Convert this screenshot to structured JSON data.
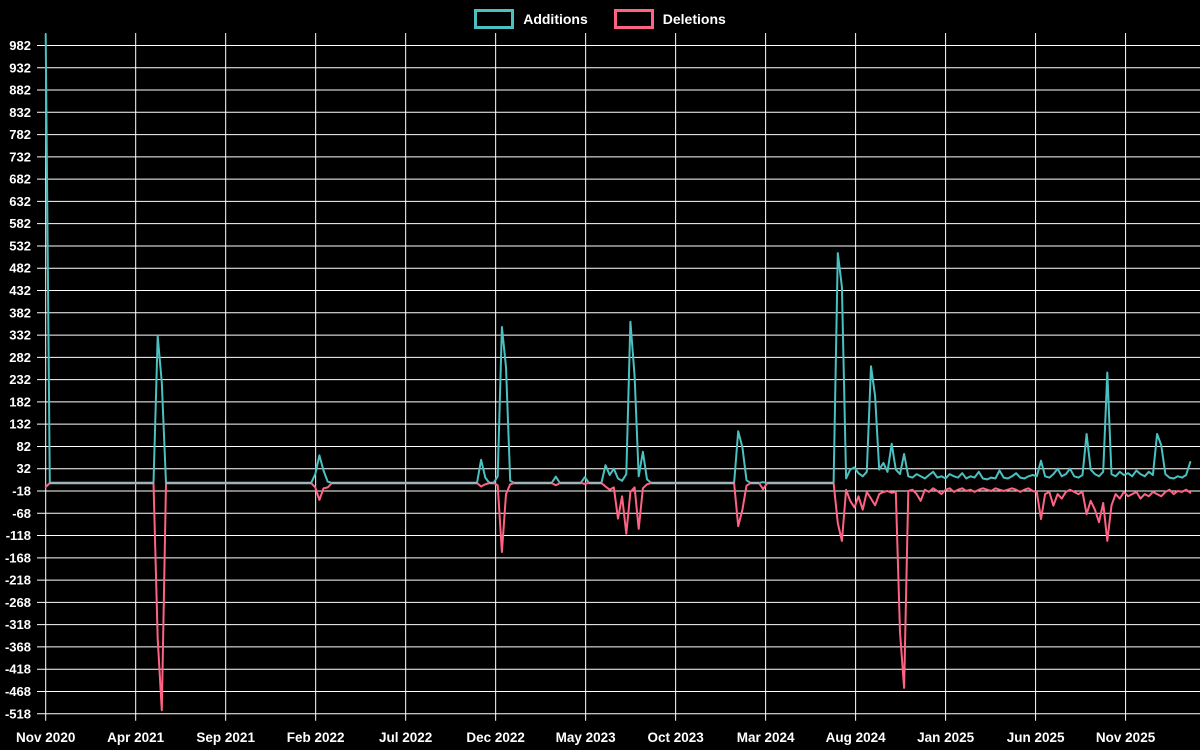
{
  "legend": {
    "items": [
      {
        "label": "Additions",
        "color": "#4bc0c0"
      },
      {
        "label": "Deletions",
        "color": "#ff6384"
      }
    ]
  },
  "chart_data": {
    "type": "line",
    "title": "",
    "xlabel": "",
    "ylabel": "",
    "background_color": "#000000",
    "grid": true,
    "grid_color": "#ffffff",
    "tick_label_color": "#ffffff",
    "legend_position": "top",
    "zero_overlap_color": "#9db4bd",
    "x_tick_labels": [
      "Nov 2020",
      "Apr 2021",
      "Sep 2021",
      "Feb 2022",
      "Jul 2022",
      "Dec 2022",
      "May 2023",
      "Oct 2023",
      "Mar 2024",
      "Aug 2024",
      "Jan 2025",
      "Jun 2025",
      "Nov 2025"
    ],
    "x_tick_weeks": [
      0,
      21.7,
      43.4,
      65.1,
      86.8,
      108.5,
      130.2,
      151.9,
      173.6,
      195.3,
      217,
      238.7,
      260.4
    ],
    "y_ticks": [
      982,
      932,
      882,
      832,
      782,
      732,
      682,
      632,
      582,
      532,
      482,
      432,
      382,
      332,
      282,
      232,
      182,
      132,
      82,
      32,
      -18,
      -68,
      -118,
      -168,
      -218,
      -268,
      -318,
      -368,
      -418,
      -468,
      -518
    ],
    "ylim": [
      -532,
      1010
    ],
    "weeks_total": 277,
    "series": [
      {
        "name": "Additions",
        "color": "#4bc0c0",
        "values": [
          1007,
          0,
          0,
          0,
          0,
          0,
          0,
          0,
          0,
          0,
          0,
          0,
          0,
          0,
          0,
          0,
          0,
          0,
          0,
          0,
          0,
          0,
          0,
          0,
          0,
          0,
          0,
          330,
          225,
          0,
          0,
          0,
          0,
          0,
          0,
          0,
          0,
          0,
          0,
          0,
          0,
          0,
          0,
          0,
          0,
          0,
          0,
          0,
          0,
          0,
          0,
          0,
          0,
          0,
          0,
          0,
          0,
          0,
          0,
          0,
          0,
          0,
          0,
          0,
          0,
          20,
          62,
          28,
          3,
          0,
          0,
          0,
          0,
          0,
          0,
          0,
          0,
          0,
          0,
          0,
          0,
          0,
          0,
          0,
          0,
          0,
          0,
          0,
          0,
          0,
          0,
          0,
          0,
          0,
          0,
          0,
          0,
          0,
          0,
          0,
          0,
          0,
          0,
          0,
          0,
          52,
          12,
          0,
          0,
          15,
          350,
          260,
          5,
          0,
          0,
          0,
          0,
          0,
          0,
          0,
          0,
          0,
          0,
          14,
          0,
          0,
          0,
          0,
          0,
          0,
          13,
          0,
          0,
          0,
          0,
          40,
          18,
          32,
          10,
          5,
          20,
          362,
          240,
          15,
          70,
          8,
          0,
          0,
          0,
          0,
          0,
          0,
          0,
          0,
          0,
          0,
          0,
          0,
          0,
          0,
          0,
          0,
          0,
          0,
          0,
          0,
          0,
          116,
          80,
          6,
          0,
          0,
          0,
          2,
          0,
          0,
          0,
          0,
          0,
          0,
          0,
          0,
          0,
          0,
          0,
          0,
          0,
          0,
          0,
          0,
          0,
          516,
          440,
          10,
          30,
          35,
          22,
          15,
          25,
          262,
          195,
          30,
          45,
          25,
          88,
          30,
          20,
          65,
          15,
          12,
          20,
          15,
          10,
          18,
          25,
          12,
          15,
          10,
          20,
          15,
          12,
          22,
          10,
          15,
          12,
          25,
          10,
          8,
          12,
          10,
          28,
          12,
          10,
          15,
          22,
          12,
          10,
          15,
          18,
          15,
          50,
          15,
          12,
          20,
          32,
          15,
          20,
          32,
          15,
          12,
          18,
          110,
          30,
          20,
          15,
          25,
          248,
          20,
          15,
          25,
          18,
          22,
          15,
          28,
          20,
          15,
          25,
          18,
          110,
          85,
          20,
          12,
          10,
          15,
          12,
          18,
          47
        ]
      },
      {
        "name": "Deletions",
        "color": "#ff6384",
        "values": [
          -9,
          0,
          0,
          0,
          0,
          0,
          0,
          0,
          0,
          0,
          0,
          0,
          0,
          0,
          0,
          0,
          0,
          0,
          0,
          0,
          0,
          0,
          0,
          0,
          0,
          0,
          0,
          -350,
          -510,
          0,
          0,
          0,
          0,
          0,
          0,
          0,
          0,
          0,
          0,
          0,
          0,
          0,
          0,
          0,
          0,
          0,
          0,
          0,
          0,
          0,
          0,
          0,
          0,
          0,
          0,
          0,
          0,
          0,
          0,
          0,
          0,
          0,
          0,
          0,
          0,
          -10,
          -38,
          -12,
          -10,
          0,
          0,
          0,
          0,
          0,
          0,
          0,
          0,
          0,
          0,
          0,
          0,
          0,
          0,
          0,
          0,
          0,
          0,
          0,
          0,
          0,
          0,
          0,
          0,
          0,
          0,
          0,
          0,
          0,
          0,
          0,
          0,
          0,
          0,
          0,
          0,
          -8,
          -3,
          0,
          0,
          -5,
          -155,
          -25,
          -3,
          0,
          0,
          0,
          0,
          0,
          0,
          0,
          0,
          0,
          0,
          -5,
          0,
          0,
          0,
          0,
          0,
          0,
          -2,
          0,
          0,
          0,
          0,
          -8,
          -15,
          -10,
          -80,
          -30,
          -114,
          -20,
          -10,
          -103,
          -12,
          -3,
          0,
          0,
          0,
          0,
          0,
          0,
          0,
          0,
          0,
          0,
          0,
          0,
          0,
          0,
          0,
          0,
          0,
          0,
          0,
          0,
          0,
          -97,
          -60,
          -6,
          0,
          0,
          0,
          -14,
          0,
          0,
          0,
          0,
          0,
          0,
          0,
          0,
          0,
          0,
          0,
          0,
          0,
          0,
          0,
          0,
          0,
          -90,
          -130,
          -15,
          -40,
          -55,
          -30,
          -60,
          -20,
          -35,
          -50,
          -25,
          -20,
          -18,
          -22,
          -20,
          -335,
          -460,
          -18,
          -15,
          -25,
          -40,
          -15,
          -20,
          -12,
          -18,
          -25,
          -15,
          -12,
          -20,
          -15,
          -12,
          -18,
          -15,
          -20,
          -15,
          -12,
          -15,
          -18,
          -12,
          -15,
          -18,
          -15,
          -12,
          -15,
          -20,
          -15,
          -12,
          -18,
          -20,
          -81,
          -25,
          -20,
          -51,
          -25,
          -35,
          -20,
          -15,
          -20,
          -25,
          -20,
          -70,
          -40,
          -60,
          -88,
          -45,
          -130,
          -50,
          -25,
          -35,
          -20,
          -30,
          -25,
          -20,
          -35,
          -25,
          -30,
          -20,
          -25,
          -30,
          -20,
          -15,
          -25,
          -18,
          -20,
          -15,
          -22
        ]
      }
    ]
  }
}
